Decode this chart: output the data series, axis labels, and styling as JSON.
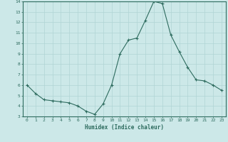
{
  "x": [
    0,
    1,
    2,
    3,
    4,
    5,
    6,
    7,
    8,
    9,
    10,
    11,
    12,
    13,
    14,
    15,
    16,
    17,
    18,
    19,
    20,
    21,
    22,
    23
  ],
  "y": [
    6.0,
    5.2,
    4.6,
    4.5,
    4.4,
    4.3,
    4.0,
    3.5,
    3.2,
    4.2,
    6.0,
    9.0,
    10.3,
    10.5,
    12.2,
    14.0,
    13.8,
    10.8,
    9.2,
    7.7,
    6.5,
    6.4,
    6.0,
    5.5
  ],
  "xlabel": "Humidex (Indice chaleur)",
  "ylim": [
    3,
    14
  ],
  "xlim": [
    -0.5,
    23.5
  ],
  "yticks": [
    3,
    4,
    5,
    6,
    7,
    8,
    9,
    10,
    11,
    12,
    13,
    14
  ],
  "xticks": [
    0,
    1,
    2,
    3,
    4,
    5,
    6,
    7,
    8,
    9,
    10,
    11,
    12,
    13,
    14,
    15,
    16,
    17,
    18,
    19,
    20,
    21,
    22,
    23
  ],
  "line_color": "#2d6b5e",
  "bg_color": "#cce8e8",
  "grid_color": "#b0d4d4"
}
